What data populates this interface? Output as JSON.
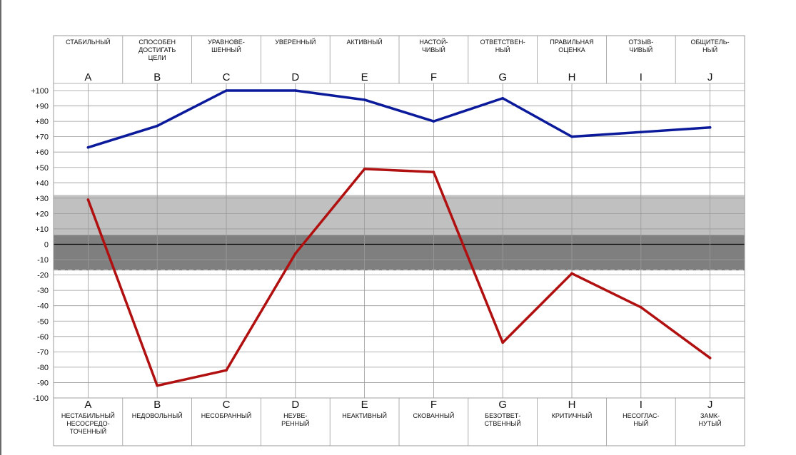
{
  "chart_data": {
    "type": "line",
    "categories": [
      "A",
      "B",
      "C",
      "D",
      "E",
      "F",
      "G",
      "H",
      "I",
      "J"
    ],
    "top_labels": [
      [
        "СТАБИЛЬНЫЙ"
      ],
      [
        "СПОСОБЕН",
        "ДОСТИГАТЬ",
        "ЦЕЛИ"
      ],
      [
        "УРАВНОВЕ-",
        "ШЕННЫЙ"
      ],
      [
        "УВЕРЕННЫЙ"
      ],
      [
        "АКТИВНЫЙ"
      ],
      [
        "НАСТОЙ-",
        "ЧИВЫЙ"
      ],
      [
        "ОТВЕТСТВЕН-",
        "НЫЙ"
      ],
      [
        "ПРАВИЛЬНАЯ",
        "ОЦЕНКА"
      ],
      [
        "ОТЗЫВ-",
        "ЧИВЫЙ"
      ],
      [
        "ОБЩИТЕЛЬ-",
        "НЫЙ"
      ]
    ],
    "bottom_labels": [
      [
        "НЕСТАБИЛЬНЫЙ",
        "НЕСОСРЕДО-",
        "ТОЧЕННЫЙ"
      ],
      [
        "НЕДОВОЛЬНЫЙ"
      ],
      [
        "НЕСОБРАННЫЙ"
      ],
      [
        "НЕУВЕ-",
        "РЕННЫЙ"
      ],
      [
        "НЕАКТИВНЫЙ"
      ],
      [
        "СКОВАННЫЙ"
      ],
      [
        "БЕЗОТВЕТ-",
        "СТВЕННЫЙ"
      ],
      [
        "КРИТИЧНЫЙ"
      ],
      [
        "НЕСОГЛАС-",
        "НЫЙ"
      ],
      [
        "ЗАМК-",
        "НУТЫЙ"
      ]
    ],
    "y_ticks": [
      100,
      90,
      80,
      70,
      60,
      50,
      40,
      30,
      20,
      10,
      0,
      -10,
      -20,
      -30,
      -40,
      -50,
      -60,
      -70,
      -80,
      -90,
      -100
    ],
    "y_tick_labels": [
      "+100",
      "+90",
      "+80",
      "+70",
      "+60",
      "+50",
      "+40",
      "+30",
      "+20",
      "+10",
      "0",
      "-10",
      "-20",
      "-30",
      "-40",
      "-50",
      "-60",
      "-70",
      "-80",
      "-90",
      "-100"
    ],
    "ylim": [
      -100,
      100
    ],
    "bands": [
      {
        "from": -17,
        "to": 32,
        "color": "#c0c0c0"
      },
      {
        "from": -17,
        "to": 6,
        "color": "#7f7f7f"
      }
    ],
    "series": [
      {
        "color": "#0a1a9a",
        "values": [
          63,
          77,
          100,
          100,
          94,
          80,
          95,
          70,
          73,
          76
        ]
      },
      {
        "color": "#b01010",
        "values": [
          29,
          -92,
          -82,
          -6,
          49,
          47,
          -64,
          -19,
          -41,
          -74
        ]
      }
    ],
    "grid": true,
    "title": "",
    "xlabel": "",
    "ylabel": ""
  }
}
